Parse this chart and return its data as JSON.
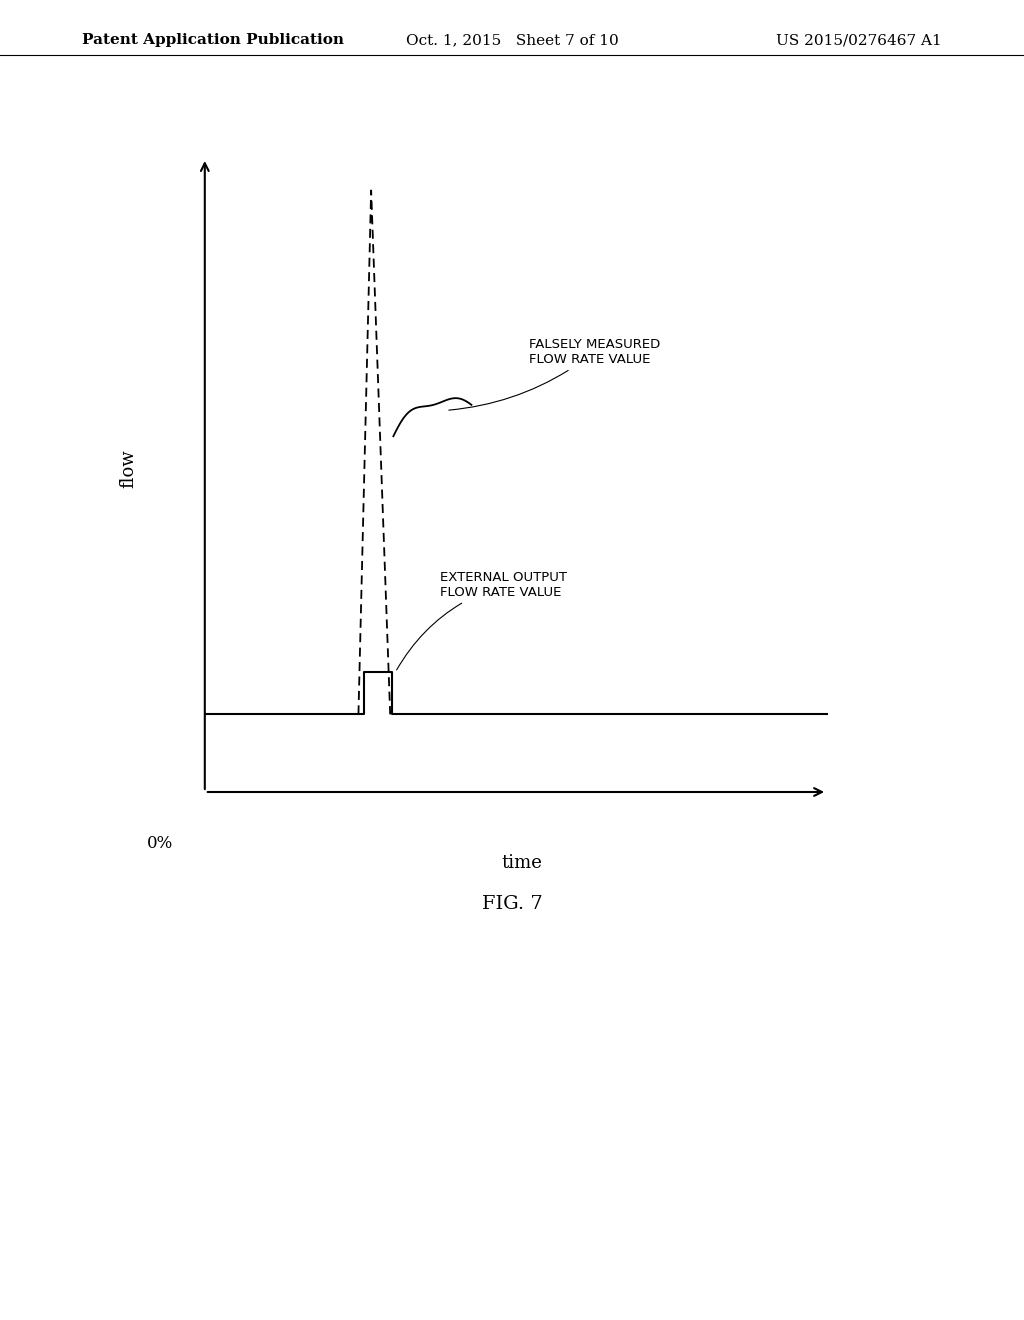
{
  "header_left": "Patent Application Publication",
  "header_center": "Oct. 1, 2015   Sheet 7 of 10",
  "header_right": "US 2015/0276467 A1",
  "fig_label": "FIG. 7",
  "xlabel": "time",
  "ylabel": "flow",
  "zero_label": "0%",
  "label_falsely": "FALSELY MEASURED\nFLOW RATE VALUE",
  "label_external": "EXTERNAL OUTPUT\nFLOW RATE VALUE",
  "background_color": "#ffffff",
  "line_color": "#000000",
  "header_fontsize": 11,
  "axis_label_fontsize": 13,
  "fig_label_fontsize": 14
}
